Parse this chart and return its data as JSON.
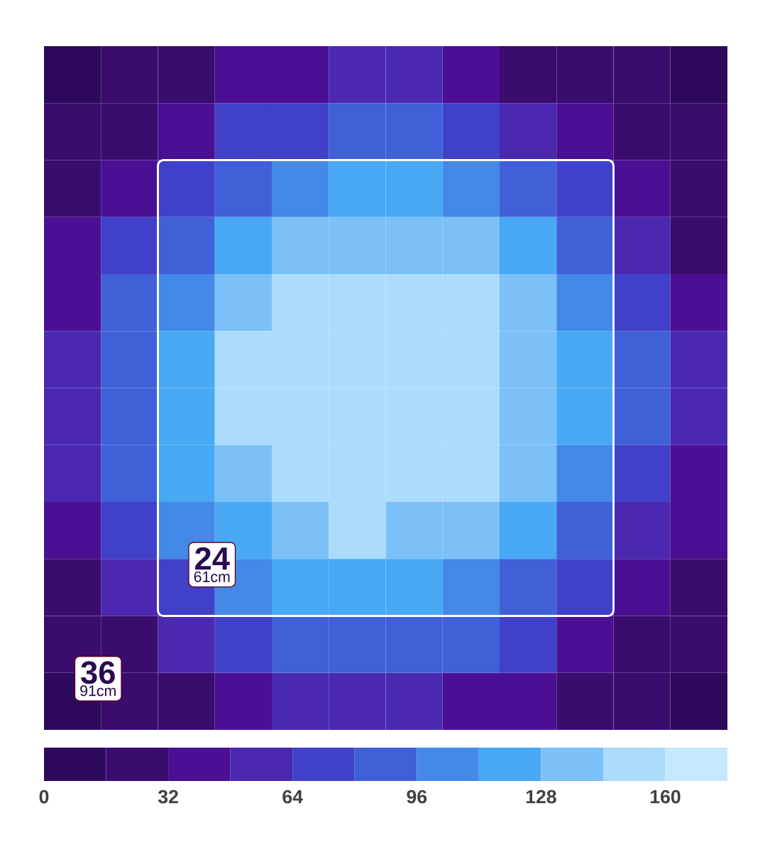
{
  "chart_data": {
    "type": "heatmap",
    "categories": [
      null,
      null,
      null,
      null,
      null,
      null,
      null,
      null,
      null,
      null,
      null,
      null
    ],
    "y_categories": [
      null,
      null,
      null,
      null,
      null,
      null,
      null,
      null,
      null,
      null,
      null,
      null
    ],
    "cells": [
      [
        8,
        24,
        24,
        40,
        40,
        56,
        56,
        40,
        24,
        24,
        24,
        8
      ],
      [
        24,
        24,
        40,
        72,
        72,
        88,
        88,
        72,
        56,
        40,
        24,
        24
      ],
      [
        24,
        40,
        72,
        88,
        104,
        120,
        120,
        104,
        88,
        72,
        40,
        24
      ],
      [
        40,
        72,
        88,
        120,
        136,
        136,
        136,
        136,
        120,
        88,
        56,
        24
      ],
      [
        40,
        88,
        104,
        136,
        152,
        152,
        152,
        152,
        136,
        104,
        72,
        40
      ],
      [
        56,
        88,
        120,
        152,
        152,
        152,
        152,
        152,
        136,
        120,
        88,
        56
      ],
      [
        56,
        88,
        120,
        152,
        152,
        152,
        152,
        152,
        136,
        120,
        88,
        56
      ],
      [
        56,
        88,
        120,
        136,
        152,
        152,
        152,
        152,
        136,
        104,
        72,
        40
      ],
      [
        40,
        72,
        104,
        120,
        136,
        152,
        136,
        136,
        120,
        88,
        56,
        40
      ],
      [
        24,
        56,
        72,
        104,
        120,
        120,
        120,
        104,
        88,
        72,
        40,
        24
      ],
      [
        24,
        24,
        56,
        72,
        88,
        88,
        88,
        88,
        72,
        40,
        24,
        24
      ],
      [
        8,
        24,
        24,
        40,
        56,
        56,
        56,
        40,
        40,
        24,
        24,
        8
      ]
    ],
    "clim": [
      0,
      176
    ],
    "cticks": [
      0,
      32,
      64,
      96,
      128,
      160
    ],
    "colors": [
      "#2e0a5c",
      "#3a0c6e",
      "#4b0f94",
      "#4a28b0",
      "#4040c8",
      "#4060d8",
      "#4488e8",
      "#48a8f4",
      "#7cc0f8",
      "#acdcfc",
      "#c4e8fc"
    ],
    "annotations": [
      "24",
      "61cm",
      "36",
      "91cm"
    ]
  }
}
